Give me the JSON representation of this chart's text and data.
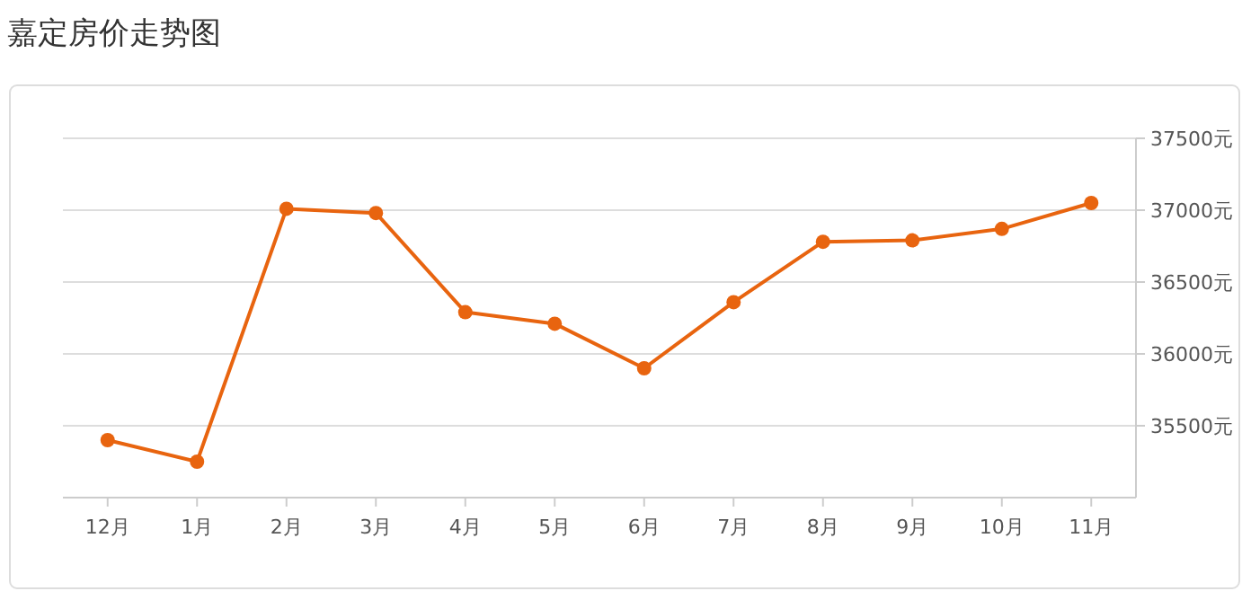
{
  "chart_data": {
    "type": "line",
    "title": "嘉定房价走势图",
    "categories": [
      "12月",
      "1月",
      "2月",
      "3月",
      "4月",
      "5月",
      "6月",
      "7月",
      "8月",
      "9月",
      "10月",
      "11月"
    ],
    "series": [
      {
        "color": "#e8640f",
        "values": [
          35400,
          35250,
          37010,
          36980,
          36290,
          36210,
          35900,
          36360,
          36780,
          36790,
          36870,
          37050
        ]
      }
    ],
    "ylim": [
      35000,
      37500
    ],
    "yticks": [
      {
        "value": 35500,
        "label": "35500元"
      },
      {
        "value": 36000,
        "label": "36000元"
      },
      {
        "value": 36500,
        "label": "36500元"
      },
      {
        "value": 37000,
        "label": "37000元"
      },
      {
        "value": 37500,
        "label": "37500元"
      }
    ],
    "grid": "y",
    "marker": "circle",
    "line_style": "solid"
  }
}
